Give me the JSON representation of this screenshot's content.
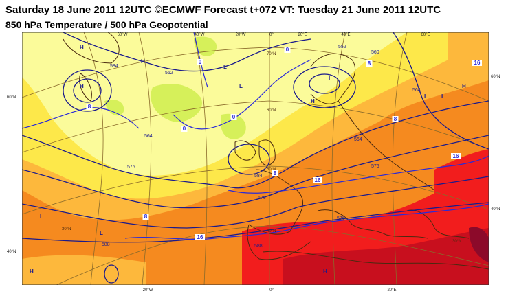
{
  "title": {
    "line1": "Saturday 18 June 2011 12UTC ©ECMWF Forecast t+072 VT: Tuesday 21 June 2011 12UTC",
    "line2": "850 hPa Temperature / 500 hPa Geopotential"
  },
  "colors": {
    "temp_0_4": "#d6f05a",
    "temp_4_8": "#fbfb9a",
    "temp_8_12": "#fde84a",
    "temp_12_16": "#fdb83c",
    "temp_16_20": "#f58a1f",
    "temp_20_24": "#f21d1d",
    "temp_24_28": "#c80f1e",
    "temp_28_plus": "#8c0a2a",
    "geopotential_line": "#1a1a8c",
    "isotherm_line": "#2a2ad8",
    "graticule": "#8a6a2a",
    "coastline": "#4a2a10"
  },
  "top_lon_labels": [
    "60°W",
    "40°W",
    "20°W",
    "0°",
    "20°E",
    "40°E",
    "60°E"
  ],
  "bottom_lon_labels": [
    "20°W",
    "0°",
    "20°E"
  ],
  "left_lat_labels": [
    "60°N",
    "40°N"
  ],
  "right_lat_labels": [
    "60°N",
    "40°N"
  ],
  "inner_lat_labels": [
    "70°N",
    "60°N",
    "50°N",
    "40°N",
    "30°N",
    "30°N"
  ],
  "geopotential_labels": [
    "584",
    "552",
    "564",
    "564",
    "576",
    "576",
    "584",
    "588",
    "588",
    "576",
    "552",
    "560",
    "576",
    "564"
  ],
  "isotherm_labels": [
    "8",
    "0",
    "0",
    "0",
    "8",
    "0",
    "16",
    "8",
    "16",
    "16",
    "16",
    "8",
    "8"
  ],
  "pressure_centres": [
    "H",
    "H",
    "L",
    "L",
    "H",
    "L",
    "L",
    "H",
    "L",
    "L",
    "L",
    "H",
    "H",
    "H"
  ]
}
